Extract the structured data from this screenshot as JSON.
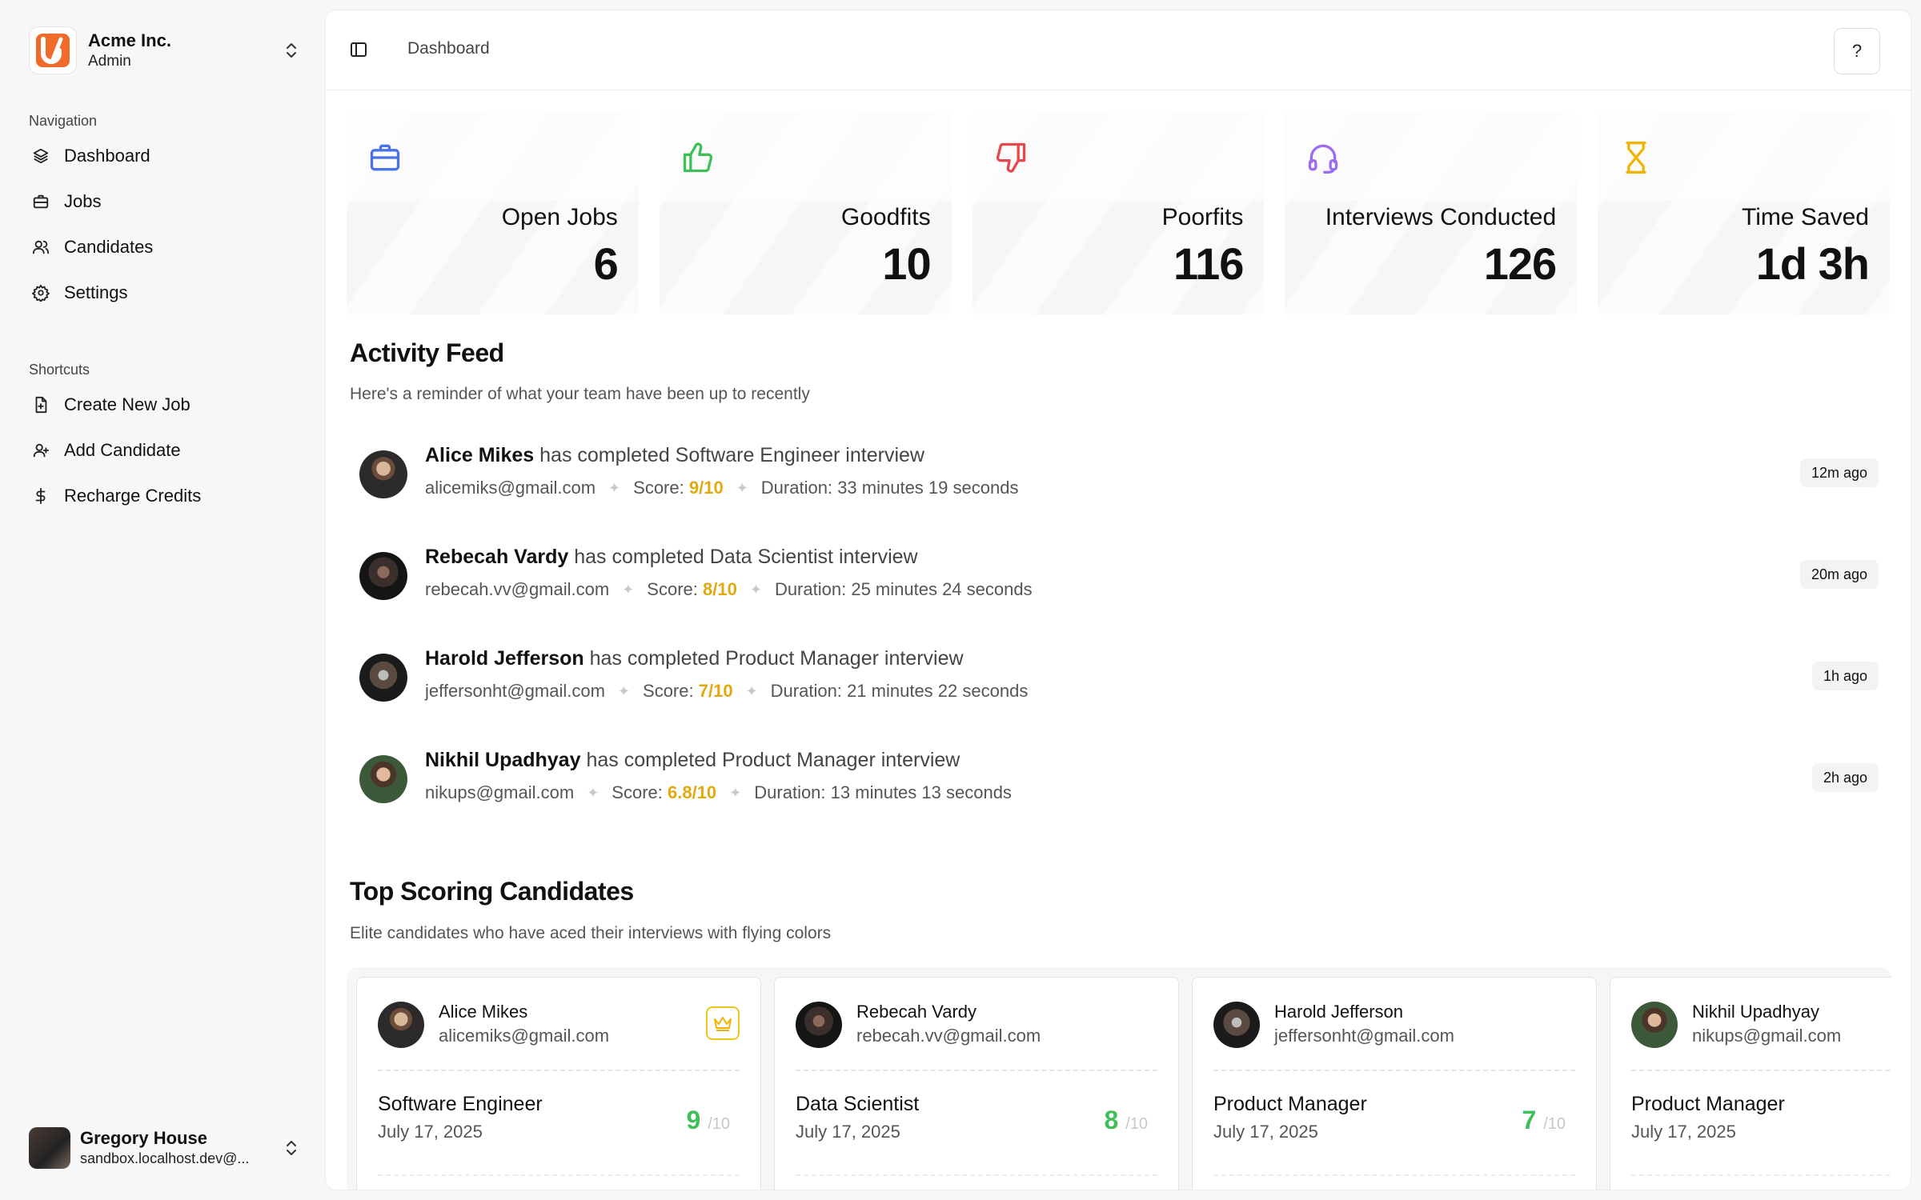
{
  "org": {
    "name": "Acme Inc.",
    "role": "Admin"
  },
  "navigation": {
    "heading": "Navigation",
    "items": [
      {
        "label": "Dashboard",
        "icon": "layers-icon"
      },
      {
        "label": "Jobs",
        "icon": "briefcase-icon"
      },
      {
        "label": "Candidates",
        "icon": "users-icon"
      },
      {
        "label": "Settings",
        "icon": "gear-icon"
      }
    ]
  },
  "shortcuts": {
    "heading": "Shortcuts",
    "items": [
      {
        "label": "Create New Job",
        "icon": "file-plus-icon"
      },
      {
        "label": "Add Candidate",
        "icon": "user-plus-icon"
      },
      {
        "label": "Recharge Credits",
        "icon": "dollar-icon"
      }
    ]
  },
  "user": {
    "name": "Gregory House",
    "email": "sandbox.localhost.dev@..."
  },
  "header": {
    "breadcrumb": "Dashboard",
    "help_label": "?"
  },
  "stats": [
    {
      "label": "Open Jobs",
      "value": "6",
      "icon": "briefcase-icon",
      "color": "#4a73e8"
    },
    {
      "label": "Goodfits",
      "value": "10",
      "icon": "thumbs-up-icon",
      "color": "#3fbf5a"
    },
    {
      "label": "Poorfits",
      "value": "116",
      "icon": "thumbs-down-icon",
      "color": "#e5484d"
    },
    {
      "label": "Interviews Conducted",
      "value": "126",
      "icon": "headset-icon",
      "color": "#9b6cf0"
    },
    {
      "label": "Time Saved",
      "value": "1d 3h",
      "icon": "hourglass-icon",
      "color": "#f0b400"
    }
  ],
  "activity": {
    "title": "Activity Feed",
    "subtitle": "Here's a reminder of what your team have been up to recently",
    "score_label": "Score:",
    "duration_label": "Duration:",
    "items": [
      {
        "name": "Alice Mikes",
        "action": "has completed Software Engineer interview",
        "email": "alicemiks@gmail.com",
        "score": "9/10",
        "duration": "33 minutes 19 seconds",
        "time": "12m ago"
      },
      {
        "name": "Rebecah Vardy",
        "action": "has completed Data Scientist interview",
        "email": "rebecah.vv@gmail.com",
        "score": "8/10",
        "duration": "25 minutes 24 seconds",
        "time": "20m ago"
      },
      {
        "name": "Harold Jefferson",
        "action": "has completed Product Manager interview",
        "email": "jeffersonht@gmail.com",
        "score": "7/10",
        "duration": "21 minutes 22 seconds",
        "time": "1h ago"
      },
      {
        "name": "Nikhil Upadhyay",
        "action": "has completed Product Manager interview",
        "email": "nikups@gmail.com",
        "score": "6.8/10",
        "duration": "13 minutes 13 seconds",
        "time": "2h ago"
      }
    ]
  },
  "top_candidates": {
    "title": "Top Scoring Candidates",
    "subtitle": "Elite candidates who have aced their interviews with flying colors",
    "items": [
      {
        "name": "Alice Mikes",
        "email": "alicemiks@gmail.com",
        "role": "Software Engineer",
        "date": "July 17, 2025",
        "score": "9",
        "denominator": "/10",
        "crown": true
      },
      {
        "name": "Rebecah Vardy",
        "email": "rebecah.vv@gmail.com",
        "role": "Data Scientist",
        "date": "July 17, 2025",
        "score": "8",
        "denominator": "/10"
      },
      {
        "name": "Harold Jefferson",
        "email": "jeffersonht@gmail.com",
        "role": "Product Manager",
        "date": "July 17, 2025",
        "score": "7",
        "denominator": "/10"
      },
      {
        "name": "Nikhil Upadhyay",
        "email": "nikups@gmail.com",
        "role": "Product Manager",
        "date": "July 17, 2025",
        "score": "",
        "denominator": ""
      }
    ]
  }
}
